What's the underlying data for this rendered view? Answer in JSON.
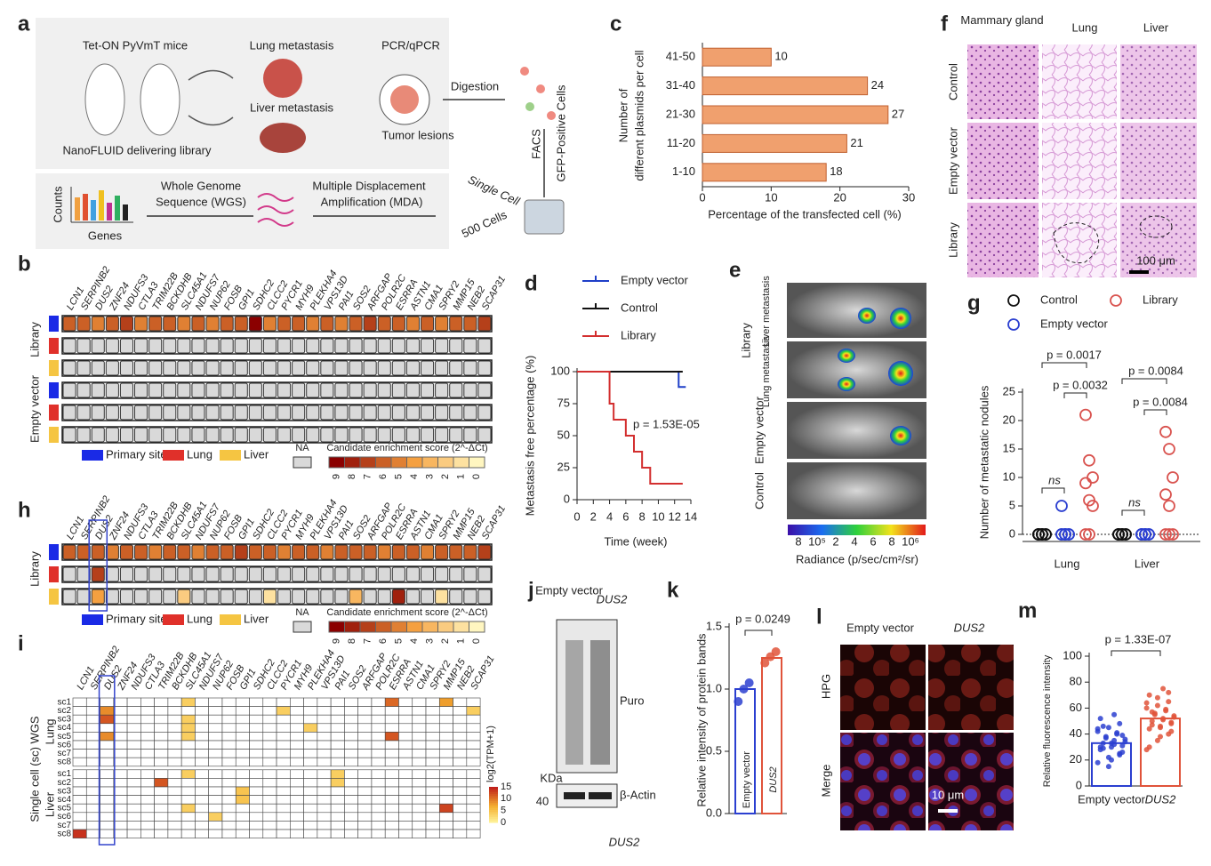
{
  "figure": {
    "panel_labels": [
      "a",
      "b",
      "c",
      "d",
      "e",
      "f",
      "g",
      "h",
      "i",
      "j",
      "k",
      "l",
      "m"
    ],
    "a": {
      "mouse": "Tet-ON PyVmT mice",
      "delivery": "NanoFLUID delivering library",
      "lung": "Lung metastasis",
      "liver": "Liver metastasis",
      "pcr": "PCR/qPCR",
      "tumor": "Tumor lesions",
      "digestion": "Digestion",
      "facs": "FACS",
      "gfp": "GFP-Positive Cells",
      "single": "Single Cell",
      "five": "500 Cells",
      "mda1": "Multiple Displacement",
      "mda2": "Amplification (MDA)",
      "wgs1": "Whole Genome",
      "wgs2": "Sequence (WGS)",
      "counts": "Counts",
      "genes": "Genes"
    },
    "genes": [
      "LCN1",
      "SERPINB2",
      "DUS2",
      "ZNF24",
      "NDUFS3",
      "CTLA3",
      "TRIM22B",
      "BCKDHB",
      "SLC45A1",
      "NDUFS7",
      "NUP62",
      "FOSB",
      "GPI1",
      "SDHC2",
      "CLCC2",
      "PYCR1",
      "MYH9",
      "PLEKHA4",
      "VPS13D",
      "PAI1",
      "SOS2",
      "ARFGAP",
      "POLR2C",
      "ESRRA",
      "ASTN1",
      "CMA1",
      "SPRY2",
      "MMP15",
      "NEB2",
      "SCAP31"
    ],
    "b": {
      "row_groups": [
        "Library",
        "Empty vector"
      ],
      "legend": [
        "Primary site",
        "Lung",
        "Liver"
      ],
      "na": "NA",
      "scale_title": "Candidate enrichment score (2^-ΔCt)",
      "scale_ticks": [
        9,
        8,
        7,
        6,
        5,
        4,
        3,
        2,
        1,
        0
      ],
      "rows": [
        [
          6,
          6,
          5,
          6,
          7,
          5,
          6,
          6,
          5,
          6,
          5,
          6,
          6,
          9,
          5,
          6,
          6,
          5,
          6,
          5,
          6,
          7,
          6,
          6,
          5,
          6,
          5,
          6,
          6,
          7
        ],
        null,
        null,
        null,
        null,
        null
      ]
    },
    "h": {
      "row_group": "Library",
      "legend": [
        "Primary site",
        "Lung",
        "Liver"
      ],
      "na": "NA",
      "scale_title": "Candidate enrichment score (2^-ΔCt)",
      "scale_ticks": [
        9,
        8,
        7,
        6,
        5,
        4,
        3,
        2,
        1,
        0
      ],
      "rows": [
        [
          6,
          6,
          6,
          5,
          6,
          6,
          5,
          6,
          6,
          5,
          6,
          6,
          7,
          6,
          6,
          5,
          6,
          6,
          5,
          6,
          6,
          6,
          5,
          6,
          6,
          5,
          6,
          6,
          6,
          7
        ],
        [
          null,
          null,
          7,
          null,
          null,
          null,
          null,
          null,
          null,
          null,
          null,
          null,
          null,
          null,
          null,
          null,
          null,
          null,
          null,
          null,
          null,
          null,
          null,
          null,
          null,
          null,
          null,
          null,
          null,
          null
        ],
        [
          null,
          null,
          4,
          null,
          null,
          null,
          null,
          null,
          2,
          null,
          null,
          null,
          null,
          null,
          1,
          null,
          null,
          null,
          null,
          null,
          3,
          null,
          null,
          8,
          null,
          null,
          1,
          null,
          null,
          null
        ]
      ]
    },
    "i": {
      "title": "Single cell (sc) WGS",
      "groups": [
        "Lung",
        "Liver"
      ],
      "cells": [
        "sc1",
        "sc2",
        "sc3",
        "sc4",
        "sc5",
        "sc6",
        "sc7",
        "sc8"
      ],
      "scale_title": "log2(TPM+1)",
      "scale_ticks": [
        15,
        10,
        5,
        0
      ],
      "rows": [
        [
          0,
          0,
          0,
          0,
          0,
          0,
          0,
          0,
          4,
          0,
          0,
          0,
          0,
          0,
          0,
          0,
          0,
          0,
          0,
          0,
          0,
          0,
          0,
          11,
          0,
          0,
          0,
          8,
          0,
          0
        ],
        [
          0,
          0,
          9,
          0,
          0,
          0,
          0,
          0,
          0,
          0,
          0,
          0,
          0,
          0,
          0,
          4,
          0,
          0,
          0,
          0,
          0,
          0,
          0,
          0,
          0,
          0,
          0,
          0,
          0,
          4
        ],
        [
          0,
          0,
          12,
          0,
          0,
          0,
          0,
          0,
          4,
          0,
          0,
          0,
          0,
          0,
          0,
          0,
          0,
          0,
          0,
          0,
          0,
          0,
          0,
          0,
          0,
          0,
          0,
          0,
          0,
          0
        ],
        [
          0,
          0,
          0,
          0,
          0,
          0,
          0,
          0,
          4,
          0,
          0,
          0,
          0,
          0,
          0,
          0,
          0,
          4,
          0,
          0,
          0,
          0,
          0,
          0,
          0,
          0,
          0,
          0,
          0,
          0
        ],
        [
          0,
          0,
          9,
          0,
          0,
          0,
          0,
          0,
          4,
          0,
          0,
          0,
          0,
          0,
          0,
          0,
          0,
          0,
          0,
          0,
          0,
          0,
          0,
          12,
          0,
          0,
          0,
          0,
          0,
          0
        ],
        [
          0,
          0,
          0,
          0,
          0,
          0,
          0,
          0,
          0,
          0,
          0,
          0,
          0,
          0,
          0,
          0,
          0,
          0,
          0,
          0,
          0,
          0,
          0,
          0,
          0,
          0,
          0,
          0,
          0,
          0
        ],
        [
          0,
          0,
          0,
          0,
          0,
          0,
          0,
          0,
          0,
          0,
          0,
          0,
          0,
          0,
          0,
          0,
          0,
          0,
          0,
          0,
          0,
          0,
          0,
          0,
          0,
          0,
          0,
          0,
          0,
          0
        ],
        [
          0,
          0,
          0,
          0,
          0,
          0,
          0,
          0,
          0,
          0,
          0,
          0,
          0,
          0,
          0,
          0,
          0,
          0,
          0,
          0,
          0,
          0,
          0,
          0,
          0,
          0,
          0,
          0,
          0,
          0
        ],
        [
          0,
          0,
          0,
          0,
          0,
          0,
          0,
          0,
          4,
          0,
          0,
          0,
          0,
          0,
          0,
          0,
          0,
          0,
          0,
          4,
          0,
          0,
          0,
          0,
          0,
          0,
          0,
          0,
          0,
          0
        ],
        [
          0,
          0,
          0,
          0,
          0,
          0,
          12,
          0,
          0,
          0,
          0,
          0,
          0,
          0,
          0,
          0,
          0,
          0,
          0,
          4,
          0,
          0,
          0,
          0,
          0,
          0,
          0,
          0,
          0,
          0
        ],
        [
          0,
          0,
          0,
          0,
          0,
          0,
          0,
          0,
          0,
          0,
          0,
          0,
          5,
          0,
          0,
          0,
          0,
          0,
          0,
          0,
          0,
          0,
          0,
          0,
          0,
          0,
          0,
          0,
          0,
          0
        ],
        [
          0,
          0,
          0,
          0,
          0,
          0,
          0,
          0,
          0,
          0,
          0,
          0,
          5,
          0,
          0,
          0,
          0,
          0,
          0,
          0,
          0,
          0,
          0,
          0,
          0,
          0,
          0,
          0,
          0,
          0
        ],
        [
          0,
          0,
          0,
          0,
          0,
          0,
          0,
          0,
          4,
          0,
          0,
          0,
          0,
          0,
          0,
          0,
          0,
          0,
          0,
          0,
          0,
          0,
          0,
          0,
          0,
          0,
          0,
          13,
          0,
          0
        ],
        [
          0,
          0,
          0,
          0,
          0,
          0,
          0,
          0,
          0,
          0,
          4,
          0,
          0,
          0,
          0,
          0,
          0,
          0,
          0,
          0,
          0,
          0,
          0,
          0,
          0,
          0,
          0,
          0,
          0,
          0
        ],
        [
          0,
          0,
          0,
          0,
          0,
          0,
          0,
          0,
          0,
          0,
          0,
          0,
          0,
          0,
          0,
          0,
          0,
          0,
          0,
          0,
          0,
          0,
          0,
          0,
          0,
          0,
          0,
          0,
          0,
          0
        ],
        [
          14,
          0,
          0,
          0,
          0,
          0,
          0,
          0,
          0,
          0,
          0,
          0,
          0,
          0,
          0,
          0,
          0,
          0,
          0,
          0,
          0,
          0,
          0,
          0,
          0,
          0,
          0,
          0,
          0,
          0
        ]
      ]
    },
    "e": {
      "group": "Library",
      "liver": "Liver metastasis",
      "lung": "Lung metastasis",
      "empty": "Empty vector",
      "control": "Control",
      "radiance": "Radiance (p/sec/cm²/sr)",
      "ticks": [
        "8",
        "10⁵",
        "2",
        "4",
        "6",
        "8",
        "10⁶"
      ]
    },
    "f": {
      "columns": [
        "Mammary gland",
        "Lung",
        "Liver"
      ],
      "rows": [
        "Control",
        "Empty vector",
        "Library"
      ],
      "scale": "100 μm"
    },
    "j": {
      "lanes": [
        "Empty vector",
        "DUS2"
      ],
      "puro": "Puro",
      "kda": "KDa",
      "marker": "40",
      "actin": "β-Actin",
      "footer": "DUS2"
    },
    "l": {
      "columns": [
        "Empty vector",
        "DUS2"
      ],
      "rows": [
        "HPG",
        "Merge"
      ],
      "scale": "10 μm"
    }
  },
  "chart_data": [
    {
      "type": "bar",
      "x_label": "Percentage of the transfected cell (%)",
      "y_label": [
        "Number of",
        "different plasmids per cell"
      ],
      "categories": [
        "41-50",
        "31-40",
        "21-30",
        "11-20",
        "1-10"
      ],
      "values": [
        10,
        24,
        27,
        21,
        18
      ],
      "color": "#f0a06e",
      "xlim": [
        0,
        30
      ],
      "xticks": [
        0,
        10,
        20,
        30
      ]
    },
    {
      "type": "line",
      "x_label": "Time (week)",
      "y_label": "Metastasis free percentage (%)",
      "annotation": "p = 1.53E-05",
      "xlim": [
        0,
        14
      ],
      "xticks": [
        0,
        2,
        4,
        6,
        8,
        10,
        12,
        14
      ],
      "ylim": [
        0,
        100
      ],
      "yticks": [
        0,
        25,
        50,
        75,
        100
      ],
      "series": [
        {
          "name": "Empty vector",
          "color": "#1f3fc8",
          "x": [
            0,
            12,
            12.5
          ],
          "values": [
            100,
            100,
            88
          ]
        },
        {
          "name": "Control",
          "color": "#111111",
          "x": [
            0,
            13
          ],
          "values": [
            100,
            100
          ]
        },
        {
          "name": "Library",
          "color": "#d32f2f",
          "x": [
            0,
            4,
            4.5,
            6,
            7,
            8,
            9,
            13
          ],
          "values": [
            100,
            75,
            62.5,
            50,
            37.5,
            25,
            12.5,
            12.5
          ]
        }
      ]
    },
    {
      "type": "scatter",
      "y_label": "Number of metastatic nodules",
      "categories": [
        "Lung",
        "Liver"
      ],
      "ylim": [
        0,
        25
      ],
      "yticks": [
        0,
        5,
        10,
        15,
        20,
        25
      ],
      "annotations": [
        "p = 0.0017",
        "p = 0.0032",
        "p = 0.0084",
        "p = 0.0084",
        "ns",
        "ns"
      ],
      "series": [
        {
          "name": "Control",
          "color": "#111111",
          "values": [
            [
              0,
              0,
              0,
              0,
              0,
              0,
              0,
              0
            ],
            [
              0,
              0,
              0,
              0,
              0,
              0,
              0,
              0
            ]
          ]
        },
        {
          "name": "Library",
          "color": "#d9534f",
          "values": [
            [
              21,
              13,
              10,
              9,
              6,
              5,
              0,
              0
            ],
            [
              18,
              15,
              10,
              7,
              5,
              0,
              0,
              0
            ]
          ]
        },
        {
          "name": "Empty vector",
          "color": "#2b3fd0",
          "values": [
            [
              5,
              0,
              0,
              0,
              0,
              0,
              0,
              0
            ],
            [
              0,
              0,
              0,
              0,
              0,
              0,
              0,
              0
            ]
          ]
        }
      ]
    },
    {
      "type": "bar",
      "y_label": "Relative intensity of protein bands",
      "annotation": "p = 0.0249",
      "categories": [
        "Empty vector",
        "DUS2"
      ],
      "colors": [
        "#2b3fd0",
        "#e0533a"
      ],
      "values": [
        1.0,
        1.25
      ],
      "points": [
        [
          0.9,
          1.0,
          1.05
        ],
        [
          1.21,
          1.26,
          1.3
        ]
      ],
      "ylim": [
        0,
        1.5
      ],
      "yticks": [
        {
          "value": 0,
          "label": "0.0"
        },
        {
          "value": 0.5,
          "label": "0.5"
        },
        {
          "value": 1,
          "label": "1.0"
        },
        {
          "value": 1.5,
          "label": "1.5"
        }
      ]
    },
    {
      "type": "bar",
      "y_label": "Relative fluorescence intensity",
      "annotation": "p = 1.33E-07",
      "categories": [
        "Empty vector",
        "DUS2"
      ],
      "colors": [
        "#2b3fd0",
        "#e0533a"
      ],
      "values": [
        33,
        52
      ],
      "ylim": [
        0,
        100
      ],
      "yticks": [
        0,
        20,
        40,
        60,
        80,
        100
      ],
      "points": [
        [
          18,
          22,
          25,
          28,
          30,
          31,
          33,
          35,
          36,
          38,
          40,
          42,
          45,
          48,
          52,
          20,
          26,
          29,
          32,
          34,
          37,
          41,
          44,
          15,
          24,
          30,
          33,
          39,
          46,
          55
        ],
        [
          28,
          35,
          40,
          44,
          46,
          48,
          50,
          52,
          54,
          56,
          58,
          60,
          62,
          65,
          70,
          38,
          42,
          47,
          51,
          53,
          55,
          59,
          64,
          68,
          72,
          30,
          45,
          49,
          57,
          75
        ]
      ]
    }
  ]
}
